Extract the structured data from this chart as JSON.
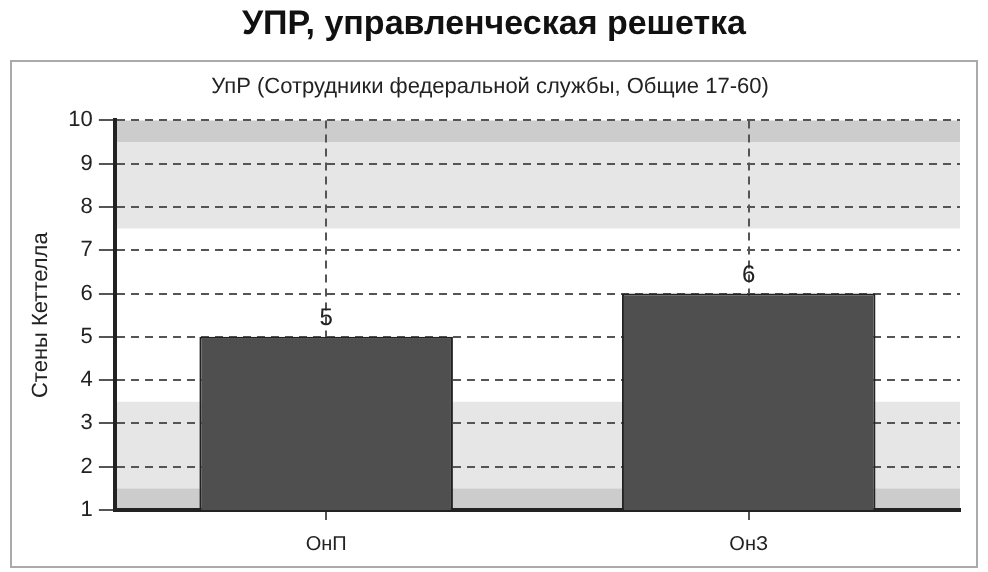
{
  "chart_data": {
    "type": "bar",
    "title": "УПР, управленческая решетка",
    "subtitle": "УпР (Сотрудники федеральной службы, Общие 17-60)",
    "ylabel": "Стены Кеттелла",
    "categories": [
      "ОнП",
      "ОнЗ"
    ],
    "values": [
      5,
      6
    ],
    "color": "#4f4f4f",
    "ylim": [
      1,
      10
    ],
    "yticks": [
      1,
      2,
      3,
      4,
      5,
      6,
      7,
      8,
      9,
      10
    ],
    "grid": true,
    "line_style": "dashed",
    "data_labels": true,
    "legend": false,
    "bands": [
      {
        "axis": "y",
        "from": 1,
        "to": 1.5,
        "color": "#cccccc"
      },
      {
        "axis": "y",
        "from": 1.5,
        "to": 3.5,
        "color": "#e6e6e6"
      },
      {
        "axis": "y",
        "from": 7.5,
        "to": 9.5,
        "color": "#e6e6e6"
      },
      {
        "axis": "y",
        "from": 9.5,
        "to": 10,
        "color": "#cccccc"
      }
    ]
  }
}
